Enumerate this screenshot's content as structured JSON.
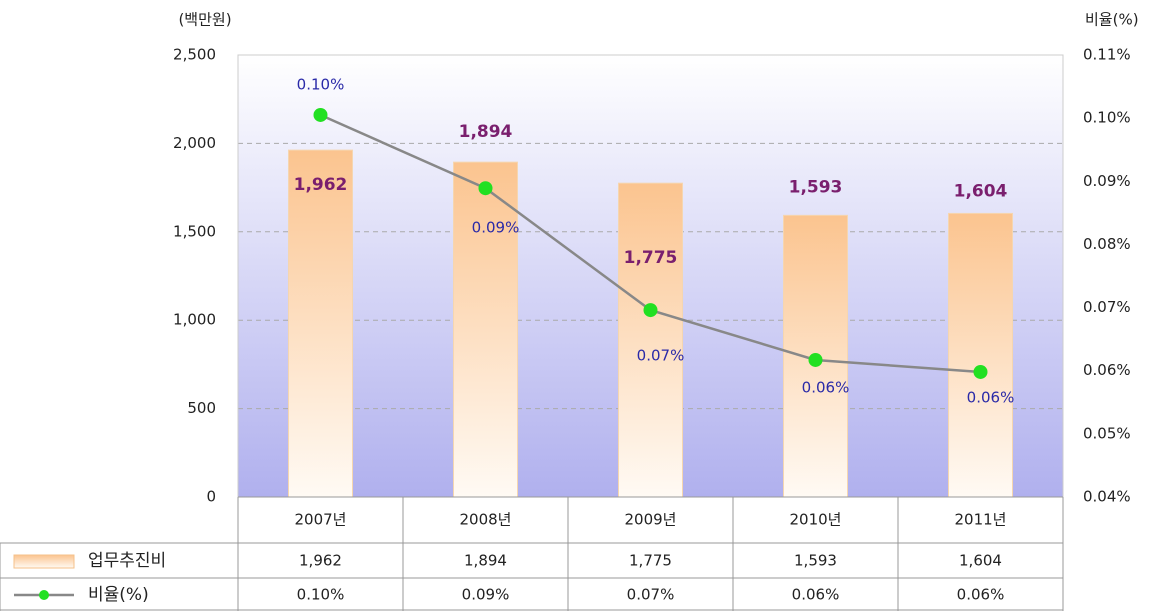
{
  "chart_data": {
    "type": "bar_line",
    "y_axis_label": "(백만원)",
    "y2_axis_label": "비율(%)",
    "categories": [
      "2007년",
      "2008년",
      "2009년",
      "2010년",
      "2011년"
    ],
    "series": [
      {
        "name": "업무추진비",
        "color": "#fbc48f",
        "values": [
          1962,
          1894,
          1775,
          1593,
          1604
        ],
        "value_labels": [
          "1,962",
          "1,894",
          "1,775",
          "1,593",
          "1,604"
        ]
      },
      {
        "name": "비율(%)",
        "color": "#22e022",
        "axis": "y2",
        "values": [
          0.1005,
          0.0889,
          0.0696,
          0.0617,
          0.0598
        ],
        "value_labels": [
          "0.10%",
          "0.09%",
          "0.07%",
          "0.06%",
          "0.06%"
        ]
      }
    ],
    "ylim": [
      0,
      2500
    ],
    "yticks": [
      0,
      500,
      {
        "value": 1000,
        "label": "1,000"
      },
      {
        "value": 1500,
        "label": "1,500"
      },
      {
        "value": 2000,
        "label": "2,000"
      },
      {
        "value": 2500,
        "label": "2,500"
      }
    ],
    "y2lim": [
      0.04,
      0.11
    ],
    "y2ticks": [
      {
        "value": 0.04,
        "label": "0.04%"
      },
      {
        "value": 0.05,
        "label": "0.05%"
      },
      {
        "value": 0.06,
        "label": "0.06%"
      },
      {
        "value": 0.07,
        "label": "0.07%"
      },
      {
        "value": 0.08,
        "label": "0.08%"
      },
      {
        "value": 0.09,
        "label": "0.09%"
      },
      {
        "value": 0.1,
        "label": "0.10%"
      },
      {
        "value": 0.11,
        "label": "0.11%"
      }
    ],
    "grid": true
  }
}
